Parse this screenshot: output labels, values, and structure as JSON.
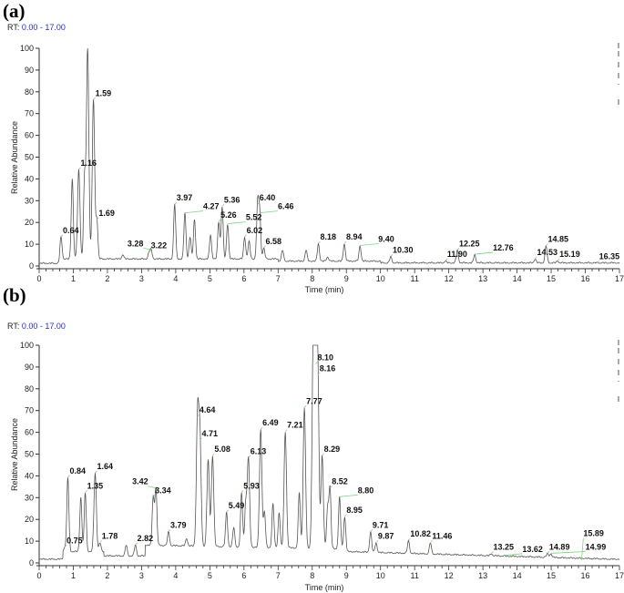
{
  "chart_data": [
    {
      "type": "line",
      "panel_label": "(a)",
      "rt_label": "RT:",
      "rt_range": "0.00 - 17.00",
      "xlabel": "Time (min)",
      "ylabel": "Relative Abundance",
      "xlim": [
        0,
        17
      ],
      "ylim": [
        0,
        100
      ],
      "x_ticks": [
        0,
        1,
        2,
        3,
        4,
        5,
        6,
        7,
        8,
        9,
        10,
        11,
        12,
        13,
        14,
        15,
        16,
        17
      ],
      "y_ticks": [
        0,
        10,
        20,
        30,
        40,
        50,
        60,
        70,
        80,
        90,
        100
      ],
      "grid": false,
      "line_color": "#555555",
      "annotation_line_color": "#7fd37f",
      "peaks": [
        {
          "rt": 0.64,
          "label": "0.64",
          "y": 13
        },
        {
          "rt": 0.97,
          "y": 40
        },
        {
          "rt": 1.16,
          "label": "1.16",
          "y": 44
        },
        {
          "rt": 1.33,
          "y": 40
        },
        {
          "rt": 1.42,
          "y": 100
        },
        {
          "rt": 1.59,
          "label": "1.59",
          "y": 76
        },
        {
          "rt": 1.69,
          "label": "1.69",
          "y": 21
        },
        {
          "rt": 2.45,
          "y": 5
        },
        {
          "rt": 3.22,
          "label": "3.22",
          "y": 6
        },
        {
          "rt": 3.28,
          "label": "3.28",
          "y": 7
        },
        {
          "rt": 3.97,
          "label": "3.97",
          "y": 28
        },
        {
          "rt": 4.27,
          "label": "4.27",
          "y": 24
        },
        {
          "rt": 4.42,
          "y": 13
        },
        {
          "rt": 4.55,
          "y": 21
        },
        {
          "rt": 5.02,
          "y": 14
        },
        {
          "rt": 5.26,
          "label": "5.26",
          "y": 20
        },
        {
          "rt": 5.36,
          "label": "5.36",
          "y": 27
        },
        {
          "rt": 5.52,
          "label": "5.52",
          "y": 19
        },
        {
          "rt": 6.02,
          "label": "6.02",
          "y": 13
        },
        {
          "rt": 6.15,
          "y": 11
        },
        {
          "rt": 6.4,
          "label": "6.40",
          "y": 28
        },
        {
          "rt": 6.46,
          "label": "6.46",
          "y": 24
        },
        {
          "rt": 6.58,
          "label": "6.58",
          "y": 8
        },
        {
          "rt": 7.13,
          "y": 7
        },
        {
          "rt": 7.82,
          "y": 7
        },
        {
          "rt": 8.18,
          "label": "8.18",
          "y": 10
        },
        {
          "rt": 8.45,
          "y": 4
        },
        {
          "rt": 8.94,
          "label": "8.94",
          "y": 10
        },
        {
          "rt": 9.4,
          "label": "9.40",
          "y": 9
        },
        {
          "rt": 10.3,
          "label": "10.30",
          "y": 4
        },
        {
          "rt": 11.9,
          "label": "11.90",
          "y": 2
        },
        {
          "rt": 12.25,
          "label": "12.25",
          "y": 7
        },
        {
          "rt": 12.76,
          "label": "12.76",
          "y": 5
        },
        {
          "rt": 14.53,
          "label": "14.53",
          "y": 3
        },
        {
          "rt": 14.85,
          "label": "14.85",
          "y": 9
        },
        {
          "rt": 15.19,
          "label": "15.19",
          "y": 2
        },
        {
          "rt": 16.35,
          "label": "16.35",
          "y": 1
        }
      ]
    },
    {
      "type": "line",
      "panel_label": "(b)",
      "rt_label": "RT:",
      "rt_range": "0.00 - 17.00",
      "xlabel": "Time (min)",
      "ylabel": "Relative Abundance",
      "xlim": [
        0,
        17
      ],
      "ylim": [
        0,
        100
      ],
      "x_ticks": [
        0,
        1,
        2,
        3,
        4,
        5,
        6,
        7,
        8,
        9,
        10,
        11,
        12,
        13,
        14,
        15,
        16,
        17
      ],
      "y_ticks": [
        0,
        10,
        20,
        30,
        40,
        50,
        60,
        70,
        80,
        90,
        100
      ],
      "grid": false,
      "line_color": "#555555",
      "annotation_line_color": "#7fd37f",
      "peaks": [
        {
          "rt": 0.75,
          "label": "0.75",
          "y": 7
        },
        {
          "rt": 0.84,
          "label": "0.84",
          "y": 39
        },
        {
          "rt": 1.22,
          "y": 30
        },
        {
          "rt": 1.35,
          "label": "1.35",
          "y": 32
        },
        {
          "rt": 1.64,
          "label": "1.64",
          "y": 41
        },
        {
          "rt": 1.78,
          "label": "1.78",
          "y": 9
        },
        {
          "rt": 2.55,
          "y": 8
        },
        {
          "rt": 2.82,
          "label": "2.82",
          "y": 8
        },
        {
          "rt": 3.34,
          "label": "3.34",
          "y": 30
        },
        {
          "rt": 3.42,
          "label": "3.42",
          "y": 34
        },
        {
          "rt": 3.79,
          "label": "3.79",
          "y": 14
        },
        {
          "rt": 4.32,
          "y": 11
        },
        {
          "rt": 4.64,
          "label": "4.64",
          "y": 67
        },
        {
          "rt": 4.71,
          "label": "4.71",
          "y": 56
        },
        {
          "rt": 4.95,
          "y": 47
        },
        {
          "rt": 5.08,
          "label": "5.08",
          "y": 49
        },
        {
          "rt": 5.49,
          "label": "5.49",
          "y": 23
        },
        {
          "rt": 5.7,
          "y": 16
        },
        {
          "rt": 5.93,
          "label": "5.93",
          "y": 32
        },
        {
          "rt": 6.05,
          "y": 26
        },
        {
          "rt": 6.13,
          "label": "6.13",
          "y": 48
        },
        {
          "rt": 6.49,
          "label": "6.49",
          "y": 61
        },
        {
          "rt": 6.6,
          "y": 23
        },
        {
          "rt": 6.85,
          "y": 27
        },
        {
          "rt": 7.03,
          "y": 23
        },
        {
          "rt": 7.21,
          "label": "7.21",
          "y": 60
        },
        {
          "rt": 7.62,
          "y": 32
        },
        {
          "rt": 7.77,
          "label": "7.77",
          "y": 71
        },
        {
          "rt": 8.03,
          "y": 100
        },
        {
          "rt": 8.1,
          "label": "8.10",
          "y": 91
        },
        {
          "rt": 8.16,
          "label": "8.16",
          "y": 86
        },
        {
          "rt": 8.29,
          "label": "8.29",
          "y": 49
        },
        {
          "rt": 8.45,
          "y": 25
        },
        {
          "rt": 8.52,
          "label": "8.52",
          "y": 34
        },
        {
          "rt": 8.8,
          "label": "8.80",
          "y": 30
        },
        {
          "rt": 8.95,
          "label": "8.95",
          "y": 21
        },
        {
          "rt": 9.71,
          "label": "9.71",
          "y": 14
        },
        {
          "rt": 9.87,
          "label": "9.87",
          "y": 9
        },
        {
          "rt": 10.82,
          "label": "10.82",
          "y": 10
        },
        {
          "rt": 11.46,
          "label": "11.46",
          "y": 9
        },
        {
          "rt": 13.25,
          "label": "13.25",
          "y": 4
        },
        {
          "rt": 13.62,
          "label": "13.62",
          "y": 3
        },
        {
          "rt": 14.89,
          "label": "14.89",
          "y": 4
        },
        {
          "rt": 14.99,
          "label": "14.99",
          "y": 4
        },
        {
          "rt": 15.89,
          "label": "15.89",
          "y": 1
        }
      ]
    }
  ]
}
